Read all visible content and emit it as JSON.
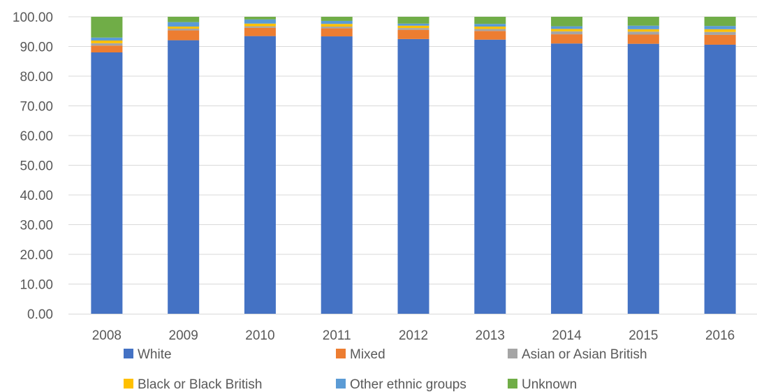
{
  "chart_data": {
    "type": "bar",
    "stacked": true,
    "categories": [
      "2008",
      "2009",
      "2010",
      "2011",
      "2012",
      "2013",
      "2014",
      "2015",
      "2016"
    ],
    "series": [
      {
        "name": "White",
        "color": "#4472C4",
        "values": [
          88.0,
          92.1,
          93.5,
          93.4,
          92.5,
          92.3,
          91.0,
          90.9,
          90.6
        ]
      },
      {
        "name": "Mixed",
        "color": "#ED7D31",
        "values": [
          2.3,
          3.3,
          2.8,
          2.7,
          3.1,
          2.9,
          3.1,
          3.1,
          3.3
        ]
      },
      {
        "name": "Asian or Asian British",
        "color": "#A5A5A5",
        "values": [
          0.8,
          0.6,
          0.5,
          0.6,
          0.6,
          0.7,
          1.0,
          1.0,
          1.0
        ]
      },
      {
        "name": "Black or Black British",
        "color": "#FFC000",
        "values": [
          0.9,
          0.7,
          0.9,
          0.9,
          0.8,
          0.8,
          0.8,
          0.8,
          0.9
        ]
      },
      {
        "name": "Other ethnic groups",
        "color": "#5B9BD5",
        "values": [
          1.0,
          1.5,
          1.4,
          1.0,
          0.7,
          0.9,
          0.9,
          1.2,
          1.1
        ]
      },
      {
        "name": "Unknown",
        "color": "#70AD47",
        "values": [
          7.0,
          1.8,
          0.9,
          1.4,
          2.3,
          2.4,
          3.2,
          3.0,
          3.1
        ]
      }
    ],
    "y_ticks": [
      "0.00",
      "10.00",
      "20.00",
      "30.00",
      "40.00",
      "50.00",
      "60.00",
      "70.00",
      "80.00",
      "90.00",
      "100.00"
    ],
    "ylim": [
      0,
      100
    ],
    "grid": true,
    "legend_position": "bottom",
    "title": "",
    "xlabel": "",
    "ylabel": ""
  }
}
